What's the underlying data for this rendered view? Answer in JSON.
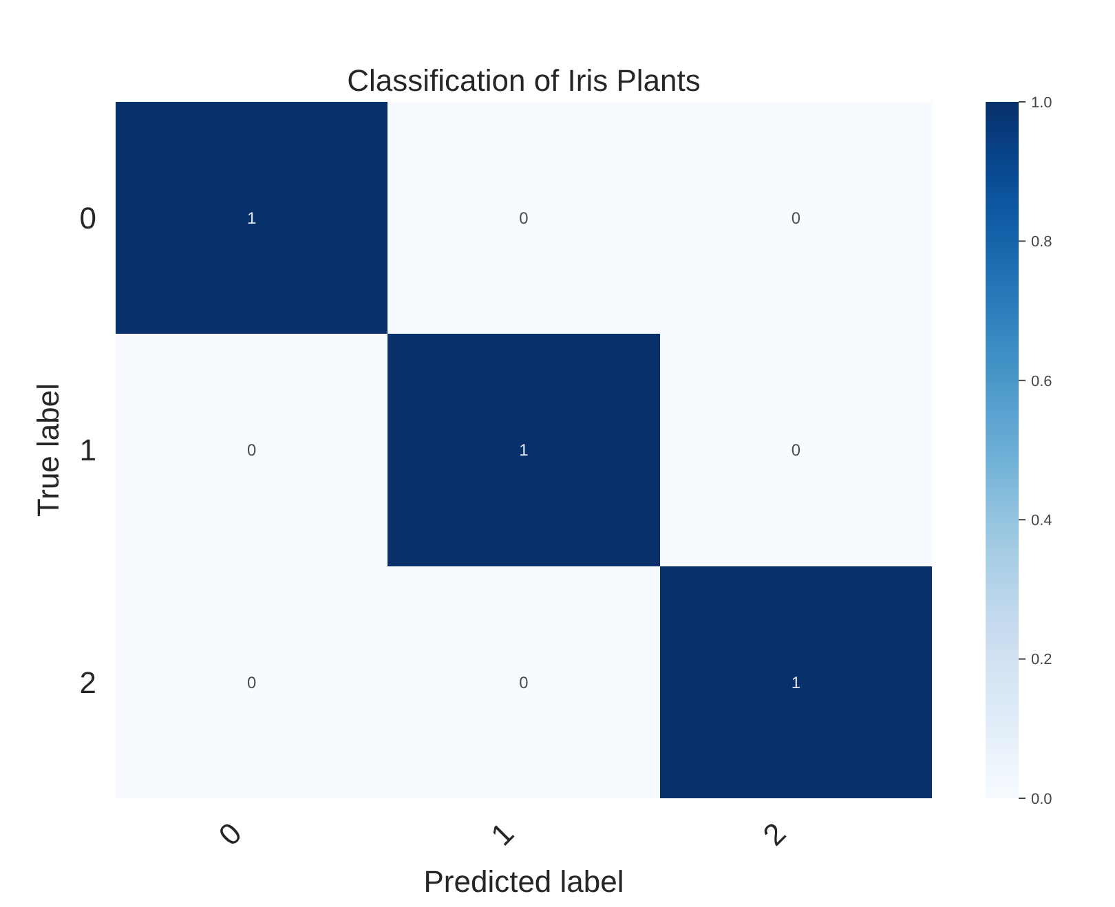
{
  "chart_data": {
    "type": "heatmap",
    "title": "Classification of Iris Plants",
    "xlabel": "Predicted label",
    "ylabel": "True label",
    "categories": [
      "0",
      "1",
      "2"
    ],
    "y_categories": [
      "0",
      "1",
      "2"
    ],
    "cells": [
      [
        1,
        0,
        0
      ],
      [
        0,
        1,
        0
      ],
      [
        0,
        0,
        1
      ]
    ],
    "data_labels": true,
    "clim": [
      0,
      1
    ],
    "cticks": [
      {
        "value": 0,
        "label": "0.0"
      },
      0.2,
      0.4,
      0.6,
      0.8,
      {
        "value": 1,
        "label": "1.0"
      }
    ]
  }
}
